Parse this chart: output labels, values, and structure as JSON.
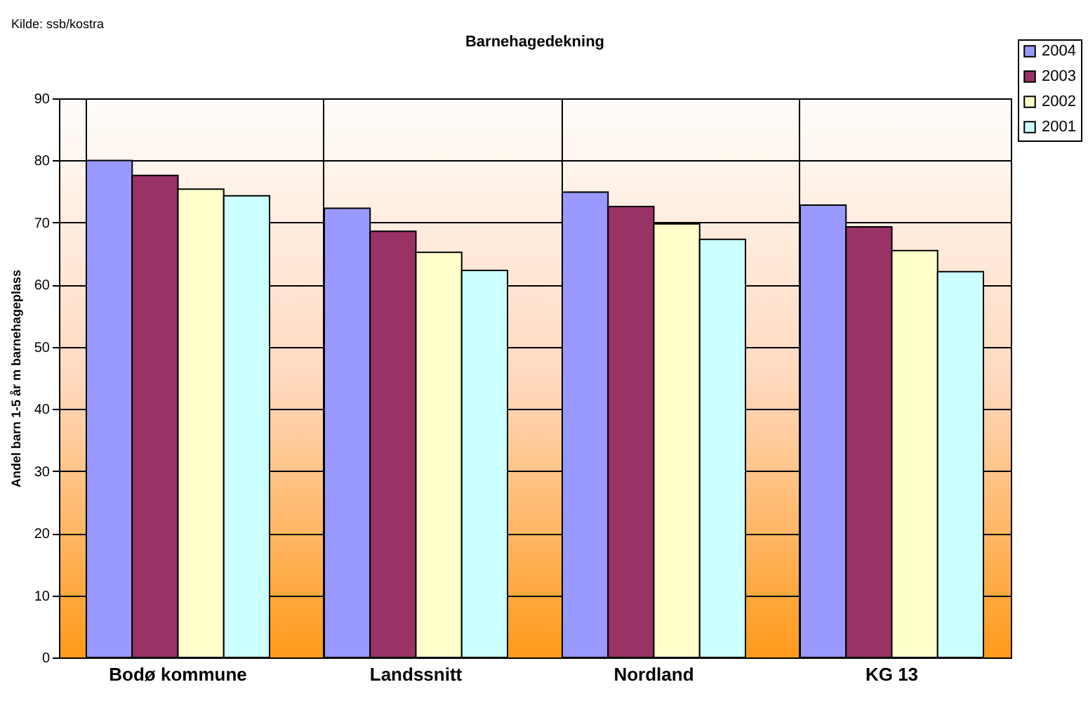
{
  "chart_data": {
    "type": "bar",
    "title": "Barnehagedekning",
    "ylabel": "Andel barn 1-5 år m barnehageplass",
    "annotations": [
      "Kilde: ssb/kostra"
    ],
    "categories": [
      "Bodø kommune",
      "Landssnitt",
      "Nordland",
      "KG 13"
    ],
    "series": [
      {
        "name": "2004",
        "color": "#9999ff",
        "values": [
          80,
          72.3,
          74.9,
          72.8
        ]
      },
      {
        "name": "2003",
        "color": "#993366",
        "values": [
          77.6,
          68.6,
          72.6,
          69.3
        ]
      },
      {
        "name": "2002",
        "color": "#ffffcc",
        "values": [
          75.4,
          65.2,
          69.8,
          65.5
        ]
      },
      {
        "name": "2001",
        "color": "#ccffff",
        "values": [
          74.3,
          62.3,
          67.3,
          62.1
        ]
      }
    ],
    "ylim": [
      0,
      90
    ],
    "yticks": [
      0,
      10,
      20,
      30,
      40,
      50,
      60,
      70,
      80,
      90
    ],
    "grid": true,
    "legend": "top right"
  }
}
